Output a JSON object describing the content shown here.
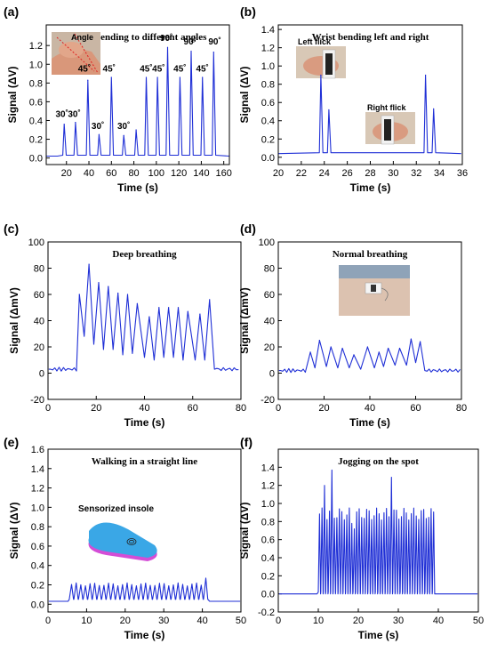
{
  "chart_data": [
    {
      "id": "a",
      "letter": "(a)",
      "type": "line",
      "title": "Wrist bending to different angles",
      "xlabel": "Time (s)",
      "ylabel": "Signal (ΔV)",
      "xlim": [
        2,
        165
      ],
      "ylim": [
        -0.07,
        1.42
      ],
      "xticks": [
        20,
        40,
        60,
        80,
        100,
        120,
        140,
        160
      ],
      "yticks": [
        0.0,
        0.2,
        0.4,
        0.6,
        0.8,
        1.0,
        1.2
      ],
      "tick_decimals": 1,
      "series": [
        {
          "color": "#1f2fd6",
          "peaks": [
            [
              18,
              0.36
            ],
            [
              28,
              0.38
            ],
            [
              39,
              0.83
            ],
            [
              49,
              0.25
            ],
            [
              60,
              0.86
            ],
            [
              71,
              0.24
            ],
            [
              82,
              0.3
            ],
            [
              91,
              0.86
            ],
            [
              101,
              0.86
            ],
            [
              110,
              1.18
            ],
            [
              121,
              0.86
            ],
            [
              131,
              1.14
            ],
            [
              141,
              0.86
            ],
            [
              151,
              1.13
            ]
          ],
          "baseline": 0.02,
          "start": 12
        }
      ],
      "annotations": [
        {
          "text": "30˚",
          "x": 16,
          "y": 0.44
        },
        {
          "text": "30˚",
          "x": 27,
          "y": 0.44
        },
        {
          "text": "45˚",
          "x": 36,
          "y": 0.92
        },
        {
          "text": "30˚",
          "x": 48,
          "y": 0.31
        },
        {
          "text": "45˚",
          "x": 58,
          "y": 0.92
        },
        {
          "text": "30˚",
          "x": 71,
          "y": 0.31
        },
        {
          "text": "45˚",
          "x": 91,
          "y": 0.92
        },
        {
          "text": "45˚",
          "x": 102,
          "y": 0.92
        },
        {
          "text": "90˚",
          "x": 109,
          "y": 1.25
        },
        {
          "text": "45˚",
          "x": 121,
          "y": 0.92
        },
        {
          "text": "90˚",
          "x": 130,
          "y": 1.21
        },
        {
          "text": "45˚",
          "x": 141,
          "y": 0.92
        },
        {
          "text": "90˚",
          "x": 152,
          "y": 1.21
        }
      ],
      "inset": {
        "label": "Angle",
        "kind": "wrist-angle-photo"
      }
    },
    {
      "id": "b",
      "letter": "(b)",
      "type": "line",
      "title": "Wrist bending left and right",
      "xlabel": "Time (s)",
      "ylabel": "Signal (ΔV)",
      "xlim": [
        20,
        36
      ],
      "ylim": [
        -0.08,
        1.45
      ],
      "xticks": [
        20,
        22,
        24,
        26,
        28,
        30,
        32,
        34,
        36
      ],
      "yticks": [
        0.0,
        0.2,
        0.4,
        0.6,
        0.8,
        1.0,
        1.2,
        1.4
      ],
      "tick_decimals": 1,
      "series": [
        {
          "color": "#1f2fd6",
          "peaks": [
            [
              23.7,
              0.9
            ],
            [
              24.4,
              0.52
            ],
            [
              32.8,
              0.9
            ],
            [
              33.5,
              0.53
            ]
          ],
          "baseline": 0.04,
          "start": 20
        }
      ],
      "inset_labels": [
        {
          "label": "Left flick",
          "kind": "left-flick-photo"
        },
        {
          "label": "Right flick",
          "kind": "right-flick-photo"
        }
      ]
    },
    {
      "id": "c",
      "letter": "(c)",
      "type": "line",
      "title": "Deep breathing",
      "xlabel": "Time (s)",
      "ylabel": "Signal (ΔmV)",
      "xlim": [
        0,
        80
      ],
      "ylim": [
        -20,
        100
      ],
      "xticks": [
        0,
        20,
        40,
        60,
        80
      ],
      "yticks": [
        -20,
        0,
        20,
        40,
        60,
        80,
        100
      ],
      "tick_decimals": 0,
      "series": [
        {
          "color": "#1f2fd6",
          "peaks": [
            [
              13,
              60
            ],
            [
              17,
              83
            ],
            [
              21,
              69
            ],
            [
              25,
              66
            ],
            [
              29,
              61
            ],
            [
              33,
              60
            ],
            [
              37,
              53
            ],
            [
              42,
              43
            ],
            [
              46,
              50
            ],
            [
              50,
              50
            ],
            [
              54,
              50
            ],
            [
              58,
              47
            ],
            [
              63,
              45
            ],
            [
              67,
              56
            ]
          ],
          "troughs": [
            [
              15,
              28
            ],
            [
              19,
              22
            ],
            [
              23,
              18
            ],
            [
              27,
              18
            ],
            [
              31,
              14
            ],
            [
              35,
              15
            ],
            [
              40,
              12
            ],
            [
              44,
              10
            ],
            [
              48,
              12
            ],
            [
              52,
              12
            ],
            [
              56,
              10
            ],
            [
              61,
              10
            ],
            [
              65,
              10
            ]
          ],
          "baseline": 3,
          "start": 12,
          "end": 69
        }
      ]
    },
    {
      "id": "d",
      "letter": "(d)",
      "type": "line",
      "title": "Normal breathing",
      "xlabel": "Time (s)",
      "ylabel": "Signal (ΔmV)",
      "xlim": [
        0,
        80
      ],
      "ylim": [
        -20,
        100
      ],
      "xticks": [
        0,
        20,
        40,
        60,
        80
      ],
      "yticks": [
        -20,
        0,
        20,
        40,
        60,
        80,
        100
      ],
      "tick_decimals": 0,
      "series": [
        {
          "color": "#1f2fd6",
          "peaks": [
            [
              14,
              16
            ],
            [
              18,
              25
            ],
            [
              23,
              20
            ],
            [
              28,
              19
            ],
            [
              33,
              14
            ],
            [
              39,
              20
            ],
            [
              44,
              16
            ],
            [
              48,
              19
            ],
            [
              53,
              19
            ],
            [
              58,
              26
            ],
            [
              62,
              24
            ]
          ],
          "troughs": [
            [
              16,
              4
            ],
            [
              21,
              5
            ],
            [
              26,
              4
            ],
            [
              31,
              4
            ],
            [
              36,
              3
            ],
            [
              42,
              4
            ],
            [
              46,
              5
            ],
            [
              51,
              6
            ],
            [
              56,
              6
            ],
            [
              60,
              8
            ]
          ],
          "baseline": 2,
          "start": 12,
          "end": 64
        }
      ],
      "inset": {
        "kind": "chest-photo"
      }
    },
    {
      "id": "e",
      "letter": "(e)",
      "type": "line",
      "title": "Walking in a straight line",
      "xlabel": "Time (s)",
      "ylabel": "Signal (ΔV)",
      "xlim": [
        0,
        50
      ],
      "ylim": [
        -0.08,
        1.6
      ],
      "xticks": [
        0,
        10,
        20,
        30,
        40,
        50
      ],
      "yticks": [
        0.0,
        0.2,
        0.4,
        0.6,
        0.8,
        1.0,
        1.2,
        1.4,
        1.6
      ],
      "tick_decimals": 1,
      "series": [
        {
          "color": "#1f2fd6",
          "baseline": 0.03,
          "start": 5.5,
          "end": 41.5,
          "period": 1.2,
          "amplitude": 0.22,
          "trough": 0.05,
          "last_peak": 0.27
        }
      ],
      "inset": {
        "label": "Sensorized insole",
        "kind": "insole-render"
      }
    },
    {
      "id": "f",
      "letter": "(f)",
      "type": "line",
      "title": "Jogging on the spot",
      "xlabel": "Time (s)",
      "ylabel": "Signal (ΔV)",
      "xlim": [
        0,
        50
      ],
      "ylim": [
        -0.2,
        1.6
      ],
      "xticks": [
        0,
        10,
        20,
        30,
        40,
        50
      ],
      "yticks": [
        -0.2,
        0.0,
        0.2,
        0.4,
        0.6,
        0.8,
        1.0,
        1.2,
        1.4
      ],
      "tick_decimals": 1,
      "series": [
        {
          "color": "#1f2fd6",
          "baseline": 0.0,
          "start": 10,
          "end": 39,
          "period": 0.62,
          "amplitude": 0.95,
          "trough": 0.0,
          "special": [
            [
              11.5,
              1.2
            ],
            [
              12.9,
              1.37
            ],
            [
              27.9,
              1.29
            ],
            [
              18.2,
              0.78
            ],
            [
              18.7,
              0.72
            ]
          ]
        }
      ]
    }
  ]
}
